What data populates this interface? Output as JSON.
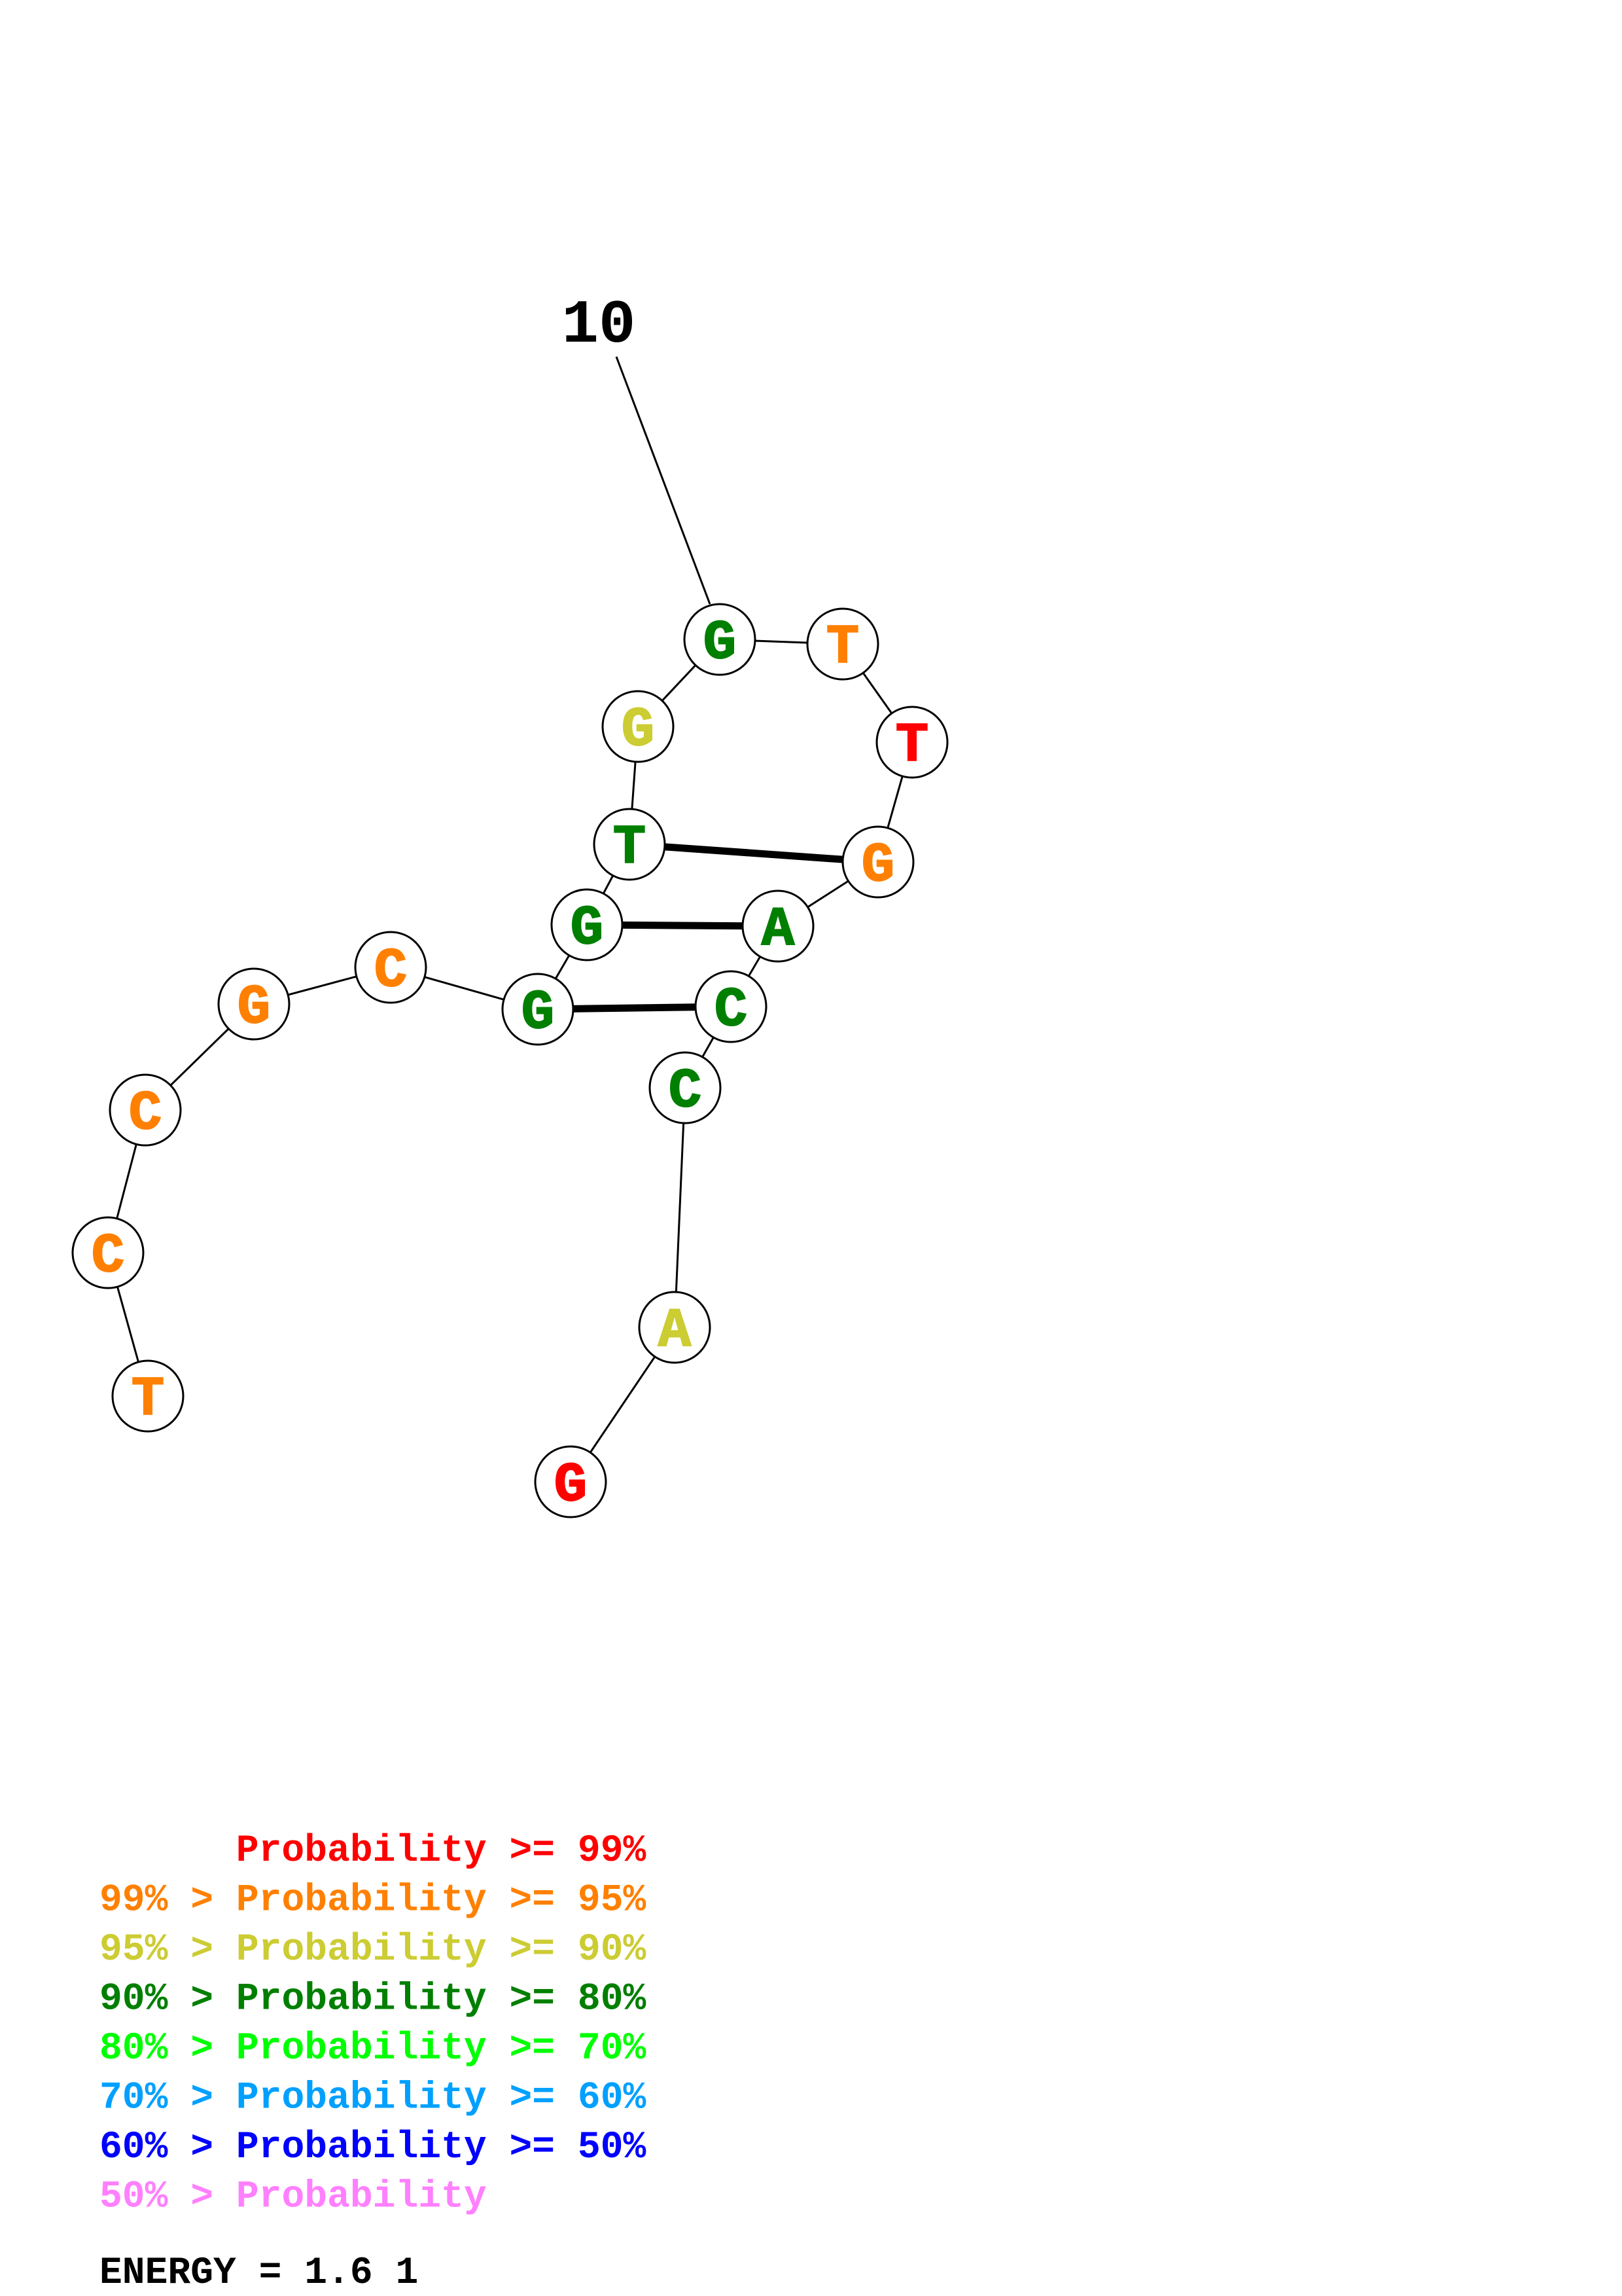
{
  "diagram": {
    "position_label": "10",
    "nucleotides": [
      {
        "letter": "T",
        "color": "#ff8000"
      },
      {
        "letter": "C",
        "color": "#ff8000"
      },
      {
        "letter": "C",
        "color": "#ff8000"
      },
      {
        "letter": "G",
        "color": "#ff8000"
      },
      {
        "letter": "C",
        "color": "#ff8000"
      },
      {
        "letter": "G",
        "color": "#007f00"
      },
      {
        "letter": "G",
        "color": "#007f00"
      },
      {
        "letter": "T",
        "color": "#007f00"
      },
      {
        "letter": "G",
        "color": "#cccc33"
      },
      {
        "letter": "G",
        "color": "#007f00"
      },
      {
        "letter": "T",
        "color": "#ff8000"
      },
      {
        "letter": "T",
        "color": "#ff0000"
      },
      {
        "letter": "G",
        "color": "#ff8000"
      },
      {
        "letter": "A",
        "color": "#007f00"
      },
      {
        "letter": "C",
        "color": "#007f00"
      },
      {
        "letter": "C",
        "color": "#007f00"
      },
      {
        "letter": "A",
        "color": "#cccc33"
      },
      {
        "letter": "G",
        "color": "#ff0000"
      }
    ],
    "base_pairs": [
      [
        6,
        15
      ],
      [
        7,
        14
      ],
      [
        8,
        13
      ]
    ],
    "label_attached_to": 10
  },
  "legend": {
    "rows": [
      {
        "prefix": "",
        "text": "Probability >= 99%",
        "color": "#ff0000"
      },
      {
        "prefix": "99% > ",
        "text": "Probability >= 95%",
        "color": "#ff8000"
      },
      {
        "prefix": "95% > ",
        "text": "Probability >= 90%",
        "color": "#cccc33"
      },
      {
        "prefix": "90% > ",
        "text": "Probability >= 80%",
        "color": "#007f00"
      },
      {
        "prefix": "80% > ",
        "text": "Probability >= 70%",
        "color": "#00ff00"
      },
      {
        "prefix": "70% > ",
        "text": "Probability >= 60%",
        "color": "#00a0ff"
      },
      {
        "prefix": "60% > ",
        "text": "Probability >= 50%",
        "color": "#0000ff"
      },
      {
        "prefix": "50% > ",
        "text": "Probability",
        "color": "#ff80ff"
      }
    ],
    "energy": "ENERGY = 1.6  1"
  }
}
